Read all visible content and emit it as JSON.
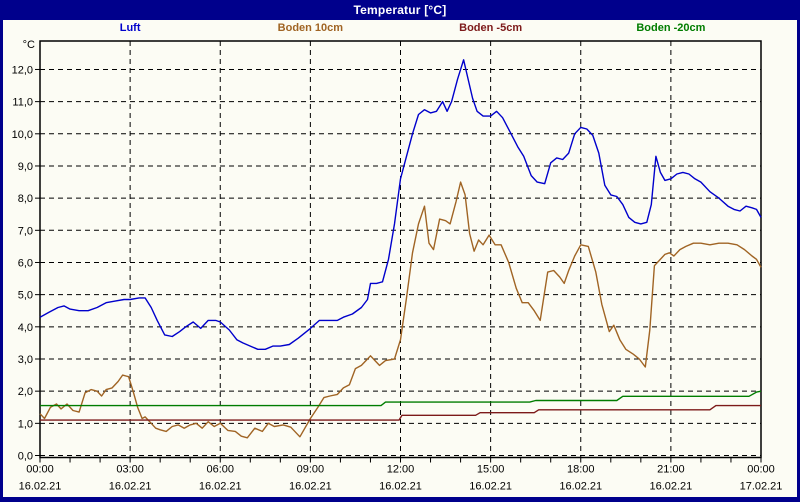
{
  "title": "Temperatur [°C]",
  "legend": {
    "items": [
      {
        "label": "Luft",
        "color": "#0000CC"
      },
      {
        "label": "Boden 10cm",
        "color": "#A06424"
      },
      {
        "label": "Boden -5cm",
        "color": "#7D1A1A"
      },
      {
        "label": "Boden -20cm",
        "color": "#007D00"
      }
    ]
  },
  "chart_data": {
    "type": "line",
    "title": "Temperatur [°C]",
    "y_unit_label": "°C",
    "ylabel": "",
    "xlabel": "",
    "ylim": [
      0,
      12.9
    ],
    "xlim_hours": [
      0,
      24
    ],
    "grid": "dashed-black",
    "legend_position": "top",
    "y_ticks": [
      {
        "value": 0,
        "label": "0,0"
      },
      {
        "value": 1,
        "label": "1,0"
      },
      {
        "value": 2,
        "label": "2,0"
      },
      {
        "value": 3,
        "label": "3,0"
      },
      {
        "value": 4,
        "label": "4,0"
      },
      {
        "value": 5,
        "label": "5,0"
      },
      {
        "value": 6,
        "label": "6,0"
      },
      {
        "value": 7,
        "label": "7,0"
      },
      {
        "value": 8,
        "label": "8,0"
      },
      {
        "value": 9,
        "label": "9,0"
      },
      {
        "value": 10,
        "label": "10,0"
      },
      {
        "value": 11,
        "label": "11,0"
      },
      {
        "value": 12,
        "label": "12,0"
      }
    ],
    "x_ticks": [
      {
        "hour": 0,
        "time": "00:00",
        "date": "16.02.21"
      },
      {
        "hour": 3,
        "time": "03:00",
        "date": "16.02.21"
      },
      {
        "hour": 6,
        "time": "06:00",
        "date": "16.02.21"
      },
      {
        "hour": 9,
        "time": "09:00",
        "date": "16.02.21"
      },
      {
        "hour": 12,
        "time": "12:00",
        "date": "16.02.21"
      },
      {
        "hour": 15,
        "time": "15:00",
        "date": "16.02.21"
      },
      {
        "hour": 18,
        "time": "18:00",
        "date": "16.02.21"
      },
      {
        "hour": 21,
        "time": "21:00",
        "date": "16.02.21"
      },
      {
        "hour": 24,
        "time": "00:00",
        "date": "17.02.21"
      }
    ],
    "x_minor_tick_every_hours": 1,
    "series": [
      {
        "name": "Luft",
        "color": "#0000CC",
        "points": [
          [
            0,
            4.3
          ],
          [
            0.3,
            4.45
          ],
          [
            0.6,
            4.6
          ],
          [
            0.8,
            4.65
          ],
          [
            1.0,
            4.55
          ],
          [
            1.3,
            4.5
          ],
          [
            1.6,
            4.5
          ],
          [
            1.9,
            4.6
          ],
          [
            2.2,
            4.75
          ],
          [
            2.5,
            4.8
          ],
          [
            2.8,
            4.85
          ],
          [
            3.0,
            4.85
          ],
          [
            3.3,
            4.9
          ],
          [
            3.5,
            4.9
          ],
          [
            3.7,
            4.6
          ],
          [
            3.9,
            4.2
          ],
          [
            4.15,
            3.75
          ],
          [
            4.4,
            3.7
          ],
          [
            4.65,
            3.85
          ],
          [
            4.85,
            4.0
          ],
          [
            5.1,
            4.15
          ],
          [
            5.35,
            3.95
          ],
          [
            5.6,
            4.2
          ],
          [
            5.85,
            4.2
          ],
          [
            6.0,
            4.15
          ],
          [
            6.3,
            3.9
          ],
          [
            6.55,
            3.6
          ],
          [
            6.75,
            3.5
          ],
          [
            7.0,
            3.4
          ],
          [
            7.25,
            3.3
          ],
          [
            7.5,
            3.3
          ],
          [
            7.75,
            3.4
          ],
          [
            8.0,
            3.4
          ],
          [
            8.3,
            3.45
          ],
          [
            8.6,
            3.65
          ],
          [
            9.0,
            3.95
          ],
          [
            9.3,
            4.2
          ],
          [
            9.6,
            4.2
          ],
          [
            9.9,
            4.2
          ],
          [
            10.1,
            4.3
          ],
          [
            10.4,
            4.4
          ],
          [
            10.7,
            4.6
          ],
          [
            10.9,
            4.85
          ],
          [
            11.0,
            5.35
          ],
          [
            11.2,
            5.35
          ],
          [
            11.4,
            5.4
          ],
          [
            11.6,
            6.1
          ],
          [
            11.8,
            7.2
          ],
          [
            12.0,
            8.6
          ],
          [
            12.2,
            9.3
          ],
          [
            12.4,
            10.0
          ],
          [
            12.6,
            10.6
          ],
          [
            12.8,
            10.75
          ],
          [
            13.0,
            10.65
          ],
          [
            13.2,
            10.7
          ],
          [
            13.4,
            11.0
          ],
          [
            13.55,
            10.7
          ],
          [
            13.7,
            11.0
          ],
          [
            13.9,
            11.7
          ],
          [
            14.1,
            12.3
          ],
          [
            14.25,
            11.7
          ],
          [
            14.4,
            11.1
          ],
          [
            14.55,
            10.7
          ],
          [
            14.75,
            10.55
          ],
          [
            15.0,
            10.55
          ],
          [
            15.2,
            10.7
          ],
          [
            15.4,
            10.5
          ],
          [
            15.65,
            10.05
          ],
          [
            15.9,
            9.6
          ],
          [
            16.1,
            9.3
          ],
          [
            16.35,
            8.7
          ],
          [
            16.55,
            8.5
          ],
          [
            16.8,
            8.45
          ],
          [
            17.0,
            9.1
          ],
          [
            17.2,
            9.25
          ],
          [
            17.4,
            9.2
          ],
          [
            17.6,
            9.4
          ],
          [
            17.8,
            10.0
          ],
          [
            18.0,
            10.2
          ],
          [
            18.2,
            10.15
          ],
          [
            18.4,
            9.95
          ],
          [
            18.6,
            9.4
          ],
          [
            18.8,
            8.4
          ],
          [
            19.0,
            8.1
          ],
          [
            19.2,
            8.05
          ],
          [
            19.4,
            7.8
          ],
          [
            19.6,
            7.4
          ],
          [
            19.8,
            7.25
          ],
          [
            20.0,
            7.2
          ],
          [
            20.2,
            7.25
          ],
          [
            20.35,
            7.8
          ],
          [
            20.5,
            9.3
          ],
          [
            20.65,
            8.8
          ],
          [
            20.8,
            8.55
          ],
          [
            21.0,
            8.6
          ],
          [
            21.2,
            8.75
          ],
          [
            21.4,
            8.8
          ],
          [
            21.6,
            8.75
          ],
          [
            21.8,
            8.6
          ],
          [
            22.0,
            8.5
          ],
          [
            22.3,
            8.2
          ],
          [
            22.6,
            8.0
          ],
          [
            22.9,
            7.75
          ],
          [
            23.1,
            7.65
          ],
          [
            23.3,
            7.6
          ],
          [
            23.5,
            7.75
          ],
          [
            23.7,
            7.7
          ],
          [
            23.85,
            7.65
          ],
          [
            24,
            7.4
          ]
        ]
      },
      {
        "name": "Boden 10cm",
        "color": "#A06424",
        "points": [
          [
            0,
            1.3
          ],
          [
            0.15,
            1.15
          ],
          [
            0.35,
            1.5
          ],
          [
            0.55,
            1.6
          ],
          [
            0.7,
            1.45
          ],
          [
            0.9,
            1.6
          ],
          [
            1.1,
            1.4
          ],
          [
            1.3,
            1.35
          ],
          [
            1.5,
            1.95
          ],
          [
            1.7,
            2.05
          ],
          [
            1.9,
            2.0
          ],
          [
            2.05,
            1.85
          ],
          [
            2.2,
            2.05
          ],
          [
            2.4,
            2.1
          ],
          [
            2.6,
            2.3
          ],
          [
            2.75,
            2.5
          ],
          [
            2.95,
            2.45
          ],
          [
            3.1,
            2.0
          ],
          [
            3.25,
            1.5
          ],
          [
            3.4,
            1.15
          ],
          [
            3.5,
            1.2
          ],
          [
            3.65,
            1.05
          ],
          [
            3.85,
            0.85
          ],
          [
            4.0,
            0.8
          ],
          [
            4.2,
            0.75
          ],
          [
            4.4,
            0.9
          ],
          [
            4.6,
            0.95
          ],
          [
            4.8,
            0.85
          ],
          [
            5.0,
            0.95
          ],
          [
            5.2,
            1.0
          ],
          [
            5.4,
            0.85
          ],
          [
            5.6,
            1.05
          ],
          [
            5.8,
            0.9
          ],
          [
            6.0,
            1.0
          ],
          [
            6.25,
            0.78
          ],
          [
            6.5,
            0.75
          ],
          [
            6.7,
            0.6
          ],
          [
            6.9,
            0.55
          ],
          [
            7.15,
            0.85
          ],
          [
            7.4,
            0.75
          ],
          [
            7.6,
            1.0
          ],
          [
            7.8,
            0.9
          ],
          [
            8.1,
            0.95
          ],
          [
            8.35,
            0.88
          ],
          [
            8.65,
            0.58
          ],
          [
            9.0,
            1.15
          ],
          [
            9.25,
            1.5
          ],
          [
            9.45,
            1.8
          ],
          [
            9.65,
            1.85
          ],
          [
            9.9,
            1.9
          ],
          [
            10.1,
            2.1
          ],
          [
            10.3,
            2.2
          ],
          [
            10.5,
            2.7
          ],
          [
            10.7,
            2.8
          ],
          [
            10.9,
            3.0
          ],
          [
            11.0,
            3.1
          ],
          [
            11.15,
            2.95
          ],
          [
            11.3,
            2.8
          ],
          [
            11.5,
            2.95
          ],
          [
            11.8,
            3.0
          ],
          [
            12.0,
            3.6
          ],
          [
            12.2,
            4.9
          ],
          [
            12.4,
            6.3
          ],
          [
            12.6,
            7.2
          ],
          [
            12.8,
            7.75
          ],
          [
            12.95,
            6.6
          ],
          [
            13.1,
            6.4
          ],
          [
            13.3,
            7.35
          ],
          [
            13.5,
            7.3
          ],
          [
            13.65,
            7.2
          ],
          [
            13.85,
            7.9
          ],
          [
            14.0,
            8.5
          ],
          [
            14.15,
            8.1
          ],
          [
            14.3,
            6.9
          ],
          [
            14.45,
            6.35
          ],
          [
            14.6,
            6.7
          ],
          [
            14.75,
            6.55
          ],
          [
            14.95,
            6.85
          ],
          [
            15.15,
            6.55
          ],
          [
            15.35,
            6.55
          ],
          [
            15.6,
            6.0
          ],
          [
            15.85,
            5.2
          ],
          [
            16.05,
            4.75
          ],
          [
            16.25,
            4.75
          ],
          [
            16.45,
            4.5
          ],
          [
            16.65,
            4.2
          ],
          [
            16.9,
            5.7
          ],
          [
            17.1,
            5.75
          ],
          [
            17.3,
            5.55
          ],
          [
            17.45,
            5.35
          ],
          [
            17.6,
            5.75
          ],
          [
            17.8,
            6.2
          ],
          [
            18.0,
            6.55
          ],
          [
            18.25,
            6.5
          ],
          [
            18.5,
            5.7
          ],
          [
            18.7,
            4.7
          ],
          [
            18.95,
            3.85
          ],
          [
            19.1,
            4.05
          ],
          [
            19.3,
            3.6
          ],
          [
            19.5,
            3.3
          ],
          [
            19.75,
            3.15
          ],
          [
            19.95,
            3.0
          ],
          [
            20.15,
            2.75
          ],
          [
            20.3,
            3.9
          ],
          [
            20.45,
            5.9
          ],
          [
            20.6,
            6.05
          ],
          [
            20.8,
            6.25
          ],
          [
            20.95,
            6.3
          ],
          [
            21.1,
            6.2
          ],
          [
            21.3,
            6.4
          ],
          [
            21.5,
            6.5
          ],
          [
            21.75,
            6.6
          ],
          [
            22.0,
            6.6
          ],
          [
            22.3,
            6.55
          ],
          [
            22.6,
            6.6
          ],
          [
            22.9,
            6.6
          ],
          [
            23.2,
            6.55
          ],
          [
            23.45,
            6.4
          ],
          [
            23.7,
            6.2
          ],
          [
            23.85,
            6.1
          ],
          [
            24,
            5.85
          ]
        ]
      },
      {
        "name": "Boden -5cm",
        "color": "#7D1A1A",
        "points": [
          [
            0,
            1.1
          ],
          [
            11.95,
            1.1
          ],
          [
            12.05,
            1.25
          ],
          [
            14.5,
            1.25
          ],
          [
            14.65,
            1.33
          ],
          [
            16.45,
            1.33
          ],
          [
            16.6,
            1.42
          ],
          [
            22.3,
            1.42
          ],
          [
            22.5,
            1.55
          ],
          [
            24,
            1.55
          ]
        ]
      },
      {
        "name": "Boden -20cm",
        "color": "#007D00",
        "points": [
          [
            0,
            1.55
          ],
          [
            11.35,
            1.55
          ],
          [
            11.5,
            1.66
          ],
          [
            16.3,
            1.66
          ],
          [
            16.5,
            1.71
          ],
          [
            19.2,
            1.71
          ],
          [
            19.4,
            1.84
          ],
          [
            23.6,
            1.84
          ],
          [
            23.85,
            1.97
          ],
          [
            24,
            2.0
          ]
        ]
      }
    ]
  }
}
